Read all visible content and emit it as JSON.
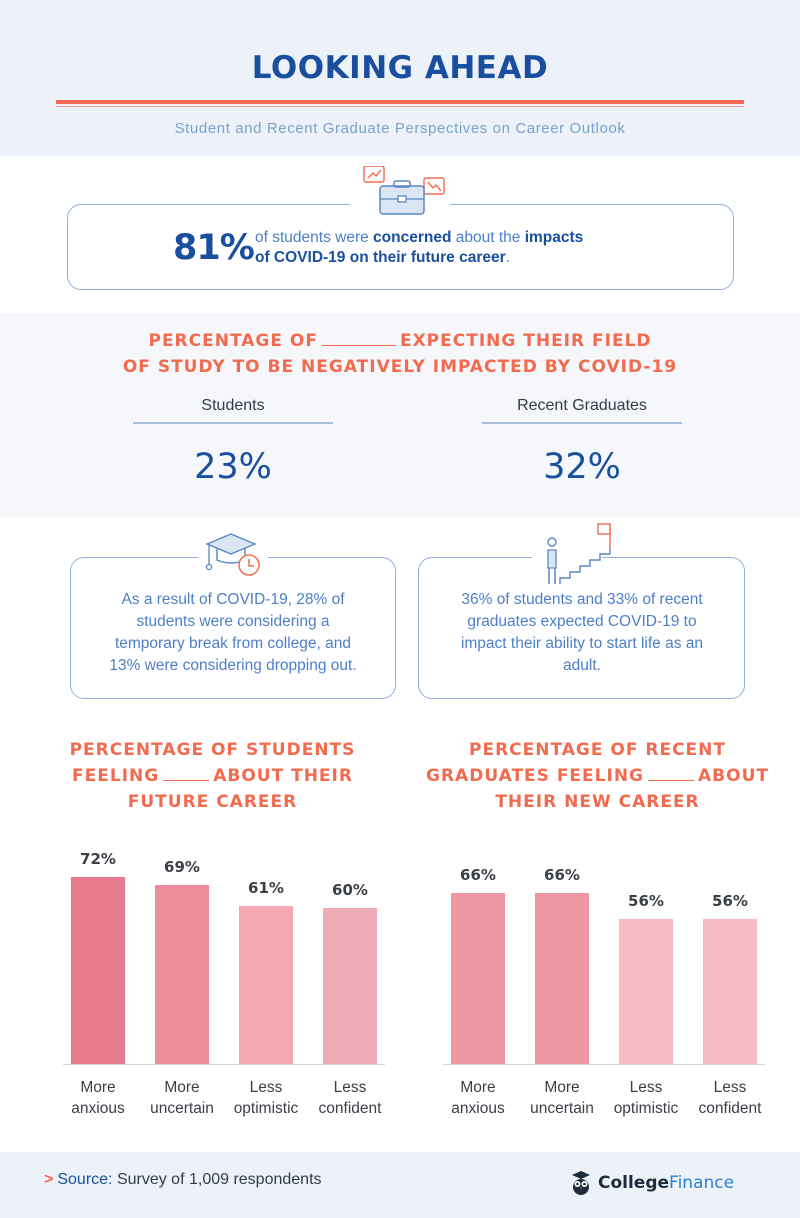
{
  "header": {
    "title": "LOOKING AHEAD",
    "subtitle": "Student and Recent Graduate Perspectives on Career Outlook"
  },
  "concern": {
    "percent": "81%",
    "text_1": "of students were",
    "bold_1": "concerned",
    "text_2": "about the",
    "bold_2": "impacts",
    "bold_3": "of COVID-19 on their future career",
    "end": "."
  },
  "field_impact": {
    "title_line1_a": "PERCENTAGE OF",
    "title_line1_b": "EXPECTING THEIR FIELD",
    "title_line2": "OF STUDY TO BE NEGATIVELY IMPACTED BY COVID-19",
    "students_label": "Students",
    "students_value": "23%",
    "grads_label": "Recent Graduates",
    "grads_value": "32%"
  },
  "cards": {
    "left_text": "As a result of COVID-19, 28% of students were considering a temporary break from college, and 13% were considering dropping out.",
    "right_text": "36% of students and 33% of recent graduates expected COVID-19 to impact their ability to start life as an adult."
  },
  "chart_data": [
    {
      "type": "bar",
      "title": "PERCENTAGE OF STUDENTS FEELING _____ ABOUT THEIR FUTURE CAREER",
      "title_lines": [
        "PERCENTAGE OF STUDENTS",
        [
          "FEELING",
          "ABOUT THEIR"
        ],
        "FUTURE CAREER"
      ],
      "categories": [
        [
          "More",
          "anxious"
        ],
        [
          "More",
          "uncertain"
        ],
        [
          "Less",
          "optimistic"
        ],
        [
          "Less",
          "confident"
        ]
      ],
      "values": [
        72,
        69,
        61,
        60
      ],
      "value_labels": [
        "72%",
        "69%",
        "61%",
        "60%"
      ],
      "unit": "%",
      "ylim": [
        0,
        72
      ],
      "colors": [
        "#e67b8b",
        "#ec8d9a",
        "#f3a8b2",
        "#eeadb6"
      ]
    },
    {
      "type": "bar",
      "title": "PERCENTAGE OF RECENT GRADUATES FEELING _____ ABOUT THEIR NEW CAREER",
      "title_lines": [
        "PERCENTAGE OF RECENT",
        [
          "GRADUATES FEELING",
          "ABOUT"
        ],
        "THEIR NEW CAREER"
      ],
      "categories": [
        [
          "More",
          "anxious"
        ],
        [
          "More",
          "uncertain"
        ],
        [
          "Less",
          "optimistic"
        ],
        [
          "Less",
          "confident"
        ]
      ],
      "values": [
        66,
        66,
        56,
        56
      ],
      "value_labels": [
        "66%",
        "66%",
        "56%",
        "56%"
      ],
      "unit": "%",
      "ylim": [
        0,
        72
      ],
      "colors": [
        "#ef98a4",
        "#ef98a4",
        "#f8bac3",
        "#f8bac3"
      ]
    }
  ],
  "footer": {
    "source_key": "Source:",
    "source_text": "Survey of 1,009 respondents",
    "brand_a": "College",
    "brand_b": "Finance"
  }
}
